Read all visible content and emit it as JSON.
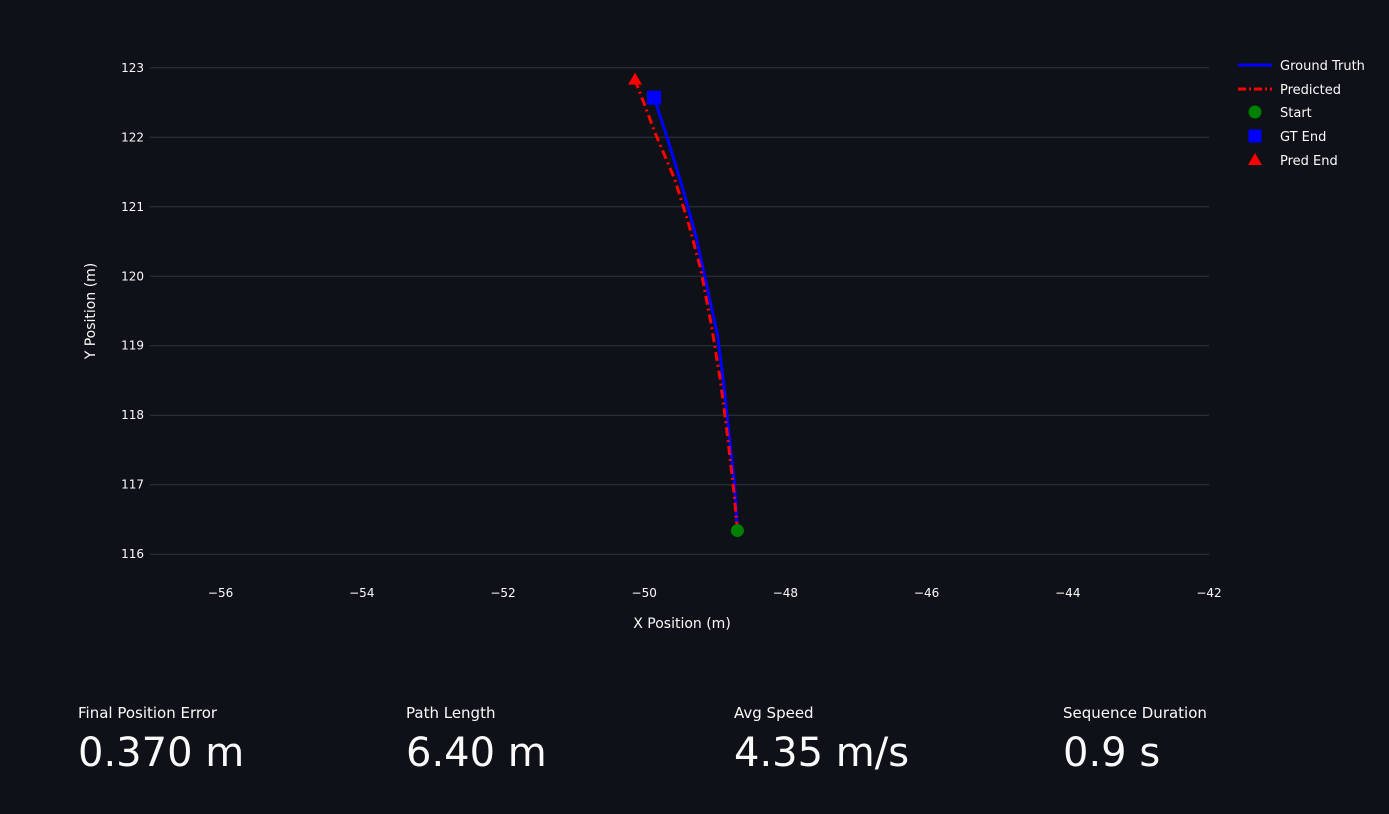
{
  "chart_data": {
    "type": "line",
    "xlabel": "X Position (m)",
    "ylabel": "Y Position (m)",
    "xlim": [
      -57,
      -42
    ],
    "ylim": [
      115.6,
      123.4
    ],
    "xticks": [
      -56,
      -54,
      -52,
      -50,
      -48,
      -46,
      -44,
      -42
    ],
    "yticks": [
      116,
      117,
      118,
      119,
      120,
      121,
      122,
      123
    ],
    "x_tick_labels": [
      "−56",
      "−54",
      "−52",
      "−50",
      "−48",
      "−46",
      "−44",
      "−42"
    ],
    "y_tick_labels": [
      "116",
      "117",
      "118",
      "119",
      "120",
      "121",
      "122",
      "123"
    ],
    "grid": true,
    "legend_position": "right",
    "series": [
      {
        "name": "Ground Truth",
        "color": "#0000ff",
        "style": "solid",
        "x": [
          -48.68,
          -48.72,
          -48.8,
          -48.88,
          -48.96,
          -49.1,
          -49.26,
          -49.45,
          -49.66,
          -49.86
        ],
        "y": [
          116.34,
          117.0,
          117.75,
          118.5,
          119.15,
          119.8,
          120.55,
          121.25,
          121.95,
          122.57
        ]
      },
      {
        "name": "Predicted",
        "color": "#ff0000",
        "style": "dashdot",
        "x": [
          -48.68,
          -48.73,
          -48.82,
          -48.92,
          -49.05,
          -49.2,
          -49.37,
          -49.57,
          -49.84,
          -50.13
        ],
        "y": [
          116.34,
          116.9,
          117.7,
          118.5,
          119.3,
          120.1,
          120.75,
          121.4,
          122.05,
          122.83
        ]
      }
    ],
    "markers": [
      {
        "name": "Start",
        "shape": "circle",
        "color": "#008000",
        "x": -48.68,
        "y": 116.34
      },
      {
        "name": "GT End",
        "shape": "square",
        "color": "#0000ff",
        "x": -49.86,
        "y": 122.57
      },
      {
        "name": "Pred End",
        "shape": "triangle",
        "color": "#ff0000",
        "x": -50.13,
        "y": 122.83
      }
    ]
  },
  "metrics": [
    {
      "label": "Final Position Error",
      "value": "0.370 m"
    },
    {
      "label": "Path Length",
      "value": "6.40 m"
    },
    {
      "label": "Avg Speed",
      "value": "4.35 m/s"
    },
    {
      "label": "Sequence Duration",
      "value": "0.9 s"
    }
  ]
}
